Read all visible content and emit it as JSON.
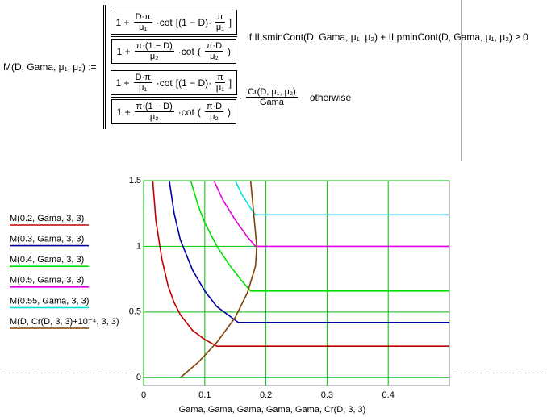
{
  "formula": {
    "lhs": "M(D, Gama, μ₁, μ₂) :=",
    "cases": [
      {
        "numerator": [
          "1 +",
          {
            "num": "D·π",
            "den": "μ₁"
          },
          "·cot",
          "[(1 − D)·",
          {
            "num": "π",
            "den": "μ₁"
          },
          "]"
        ],
        "denominator": [
          "1 +",
          {
            "num": "π·(1 − D)",
            "den": "μ₂"
          },
          "·cot",
          "(",
          {
            "num": "π·D",
            "den": "μ₂"
          },
          ")"
        ],
        "extra": [],
        "condition": "if  ILsminCont(D, Gama, μ₁, μ₂) + ILpminCont(D, Gama, μ₁, μ₂) ≥ 0"
      },
      {
        "numerator": [
          "1 +",
          {
            "num": "D·π",
            "den": "μ₁"
          },
          "·cot",
          "[(1 − D)·",
          {
            "num": "π",
            "den": "μ₁"
          },
          "]"
        ],
        "denominator": [
          "1 +",
          {
            "num": "π·(1 − D)",
            "den": "μ₂"
          },
          "·cot",
          "(",
          {
            "num": "π·D",
            "den": "μ₂"
          },
          ")"
        ],
        "extra": [
          "·",
          {
            "num": "Cr(D, μ₁, μ₂)",
            "den": "Gama"
          }
        ],
        "condition": "otherwise"
      }
    ]
  },
  "chart_data": {
    "type": "line",
    "x_label": "Gama, Gama, Gama, Gama, Gama, Cr(D, 3, 3)",
    "xlim": [
      0,
      0.5
    ],
    "ylim": [
      -0.06,
      1.5
    ],
    "xticks": [
      0,
      0.1,
      0.2,
      0.3,
      0.4
    ],
    "yticks": [
      0,
      0.5,
      1,
      1.5
    ],
    "grid": true,
    "grid_color": "#00c000",
    "series": [
      {
        "name": "M(0.2, Gama, 3, 3)",
        "color": "#c00000",
        "x": [
          0.015,
          0.02,
          0.03,
          0.04,
          0.05,
          0.06,
          0.08,
          0.1,
          0.12,
          0.5
        ],
        "values": [
          1.5,
          1.2,
          0.9,
          0.7,
          0.57,
          0.48,
          0.36,
          0.29,
          0.24,
          0.24
        ]
      },
      {
        "name": "M(0.3, Gama, 3, 3)",
        "color": "#0000a0",
        "x": [
          0.042,
          0.05,
          0.06,
          0.08,
          0.1,
          0.12,
          0.155,
          0.5
        ],
        "values": [
          1.5,
          1.25,
          1.05,
          0.82,
          0.66,
          0.54,
          0.42,
          0.42
        ]
      },
      {
        "name": "M(0.4, Gama, 3, 3)",
        "color": "#00e000",
        "x": [
          0.077,
          0.09,
          0.1,
          0.12,
          0.14,
          0.16,
          0.175,
          0.5
        ],
        "values": [
          1.5,
          1.3,
          1.18,
          1.0,
          0.86,
          0.74,
          0.66,
          0.66
        ]
      },
      {
        "name": "M(0.5, Gama, 3, 3)",
        "color": "#e000e0",
        "x": [
          0.115,
          0.13,
          0.15,
          0.17,
          0.183,
          0.5
        ],
        "values": [
          1.5,
          1.35,
          1.2,
          1.07,
          1.0,
          1.0
        ]
      },
      {
        "name": "M(0.55, Gama, 3, 3)",
        "color": "#00e0e0",
        "x": [
          0.15,
          0.16,
          0.175,
          0.183,
          0.5
        ],
        "values": [
          1.5,
          1.4,
          1.29,
          1.24,
          1.24
        ]
      },
      {
        "name": "M(D, Cr(D, 3, 3)+10⁻⁴, 3, 3)",
        "color": "#804000",
        "x": [
          0.06,
          0.09,
          0.12,
          0.15,
          0.17,
          0.183,
          0.185,
          0.18,
          0.175
        ],
        "values": [
          0,
          0.12,
          0.27,
          0.46,
          0.65,
          0.85,
          1.0,
          1.25,
          1.5
        ]
      }
    ]
  }
}
